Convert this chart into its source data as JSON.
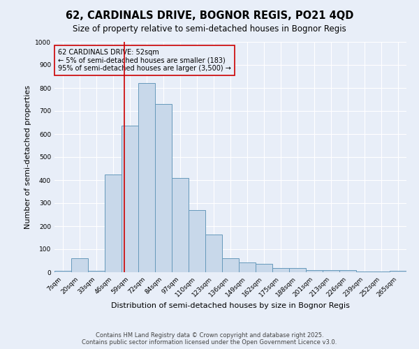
{
  "title": "62, CARDINALS DRIVE, BOGNOR REGIS, PO21 4QD",
  "subtitle": "Size of property relative to semi-detached houses in Bognor Regis",
  "xlabel": "Distribution of semi-detached houses by size in Bognor Regis",
  "ylabel": "Number of semi-detached properties",
  "bin_labels": [
    "7sqm",
    "20sqm",
    "33sqm",
    "46sqm",
    "59sqm",
    "72sqm",
    "84sqm",
    "97sqm",
    "110sqm",
    "123sqm",
    "136sqm",
    "149sqm",
    "162sqm",
    "175sqm",
    "188sqm",
    "201sqm",
    "213sqm",
    "226sqm",
    "239sqm",
    "252sqm",
    "265sqm"
  ],
  "bar_heights": [
    5,
    62,
    5,
    425,
    635,
    820,
    730,
    410,
    270,
    165,
    62,
    42,
    35,
    18,
    18,
    10,
    8,
    10,
    3,
    3,
    5
  ],
  "bar_color": "#c8d8ea",
  "bar_edge_color": "#6699bb",
  "vline_x": 3.65,
  "vline_color": "#cc0000",
  "annotation_text": "62 CARDINALS DRIVE: 52sqm\n← 5% of semi-detached houses are smaller (183)\n95% of semi-detached houses are larger (3,500) →",
  "box_edge_color": "#cc0000",
  "ylim": [
    0,
    1000
  ],
  "yticks": [
    0,
    100,
    200,
    300,
    400,
    500,
    600,
    700,
    800,
    900,
    1000
  ],
  "footer_text": "Contains HM Land Registry data © Crown copyright and database right 2025.\nContains public sector information licensed under the Open Government Licence v3.0.",
  "bg_color": "#e8eef8",
  "grid_color": "#ffffff",
  "title_fontsize": 10.5,
  "subtitle_fontsize": 8.5,
  "label_fontsize": 8,
  "tick_fontsize": 6.5,
  "annotation_fontsize": 7,
  "footer_fontsize": 6
}
